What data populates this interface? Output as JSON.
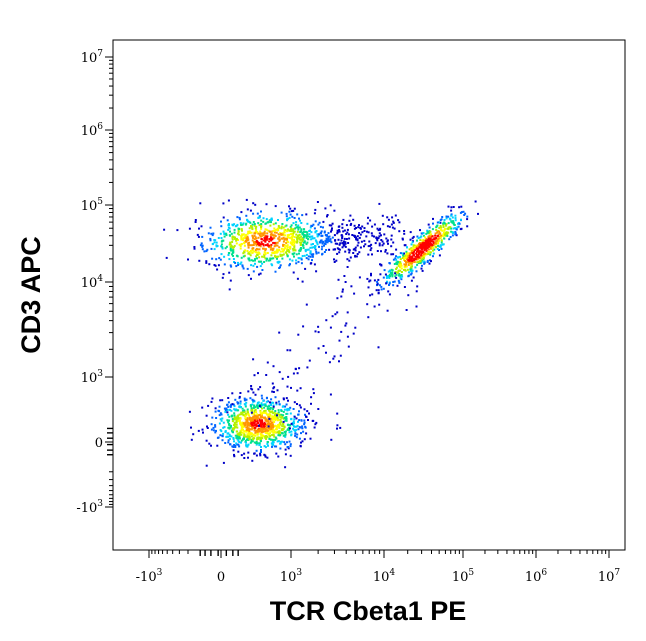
{
  "chart_data": {
    "type": "scatter",
    "subtype": "flow-cytometry-density-plot",
    "xlabel": "TCR Cbeta1 PE",
    "ylabel": "CD3 APC",
    "x_scale": "biexponential",
    "y_scale": "biexponential",
    "xlim": [
      -5000,
      10000000
    ],
    "ylim": [
      -5000,
      10000000
    ],
    "x_ticks": [
      {
        "value": -1000,
        "base": "-10",
        "exp": "3"
      },
      {
        "value": 0,
        "base": "0",
        "exp": ""
      },
      {
        "value": 1000,
        "base": "10",
        "exp": "3"
      },
      {
        "value": 10000,
        "base": "10",
        "exp": "4"
      },
      {
        "value": 100000,
        "base": "10",
        "exp": "5"
      },
      {
        "value": 1000000,
        "base": "10",
        "exp": "6"
      },
      {
        "value": 10000000,
        "base": "10",
        "exp": "7"
      }
    ],
    "y_ticks": [
      {
        "value": -1000,
        "base": "-10",
        "exp": "3"
      },
      {
        "value": 0,
        "base": "0",
        "exp": ""
      },
      {
        "value": 1000,
        "base": "10",
        "exp": "3"
      },
      {
        "value": 10000,
        "base": "10",
        "exp": "4"
      },
      {
        "value": 100000,
        "base": "10",
        "exp": "5"
      },
      {
        "value": 1000000,
        "base": "10",
        "exp": "6"
      },
      {
        "value": 10000000,
        "base": "10",
        "exp": "7"
      }
    ],
    "populations": [
      {
        "center_x": 350,
        "center_y": 35000,
        "description_density": "high"
      },
      {
        "center_x": 30000,
        "center_y": 28000,
        "description_density": "very high"
      },
      {
        "center_x": 250,
        "center_y": 100,
        "description_density": "high"
      }
    ],
    "colormap": [
      "#0000c8",
      "#0064ff",
      "#00d2ff",
      "#00e08c",
      "#b4f000",
      "#ffff00",
      "#ff9600",
      "#ff0000"
    ],
    "grid": false,
    "legend": "none"
  }
}
